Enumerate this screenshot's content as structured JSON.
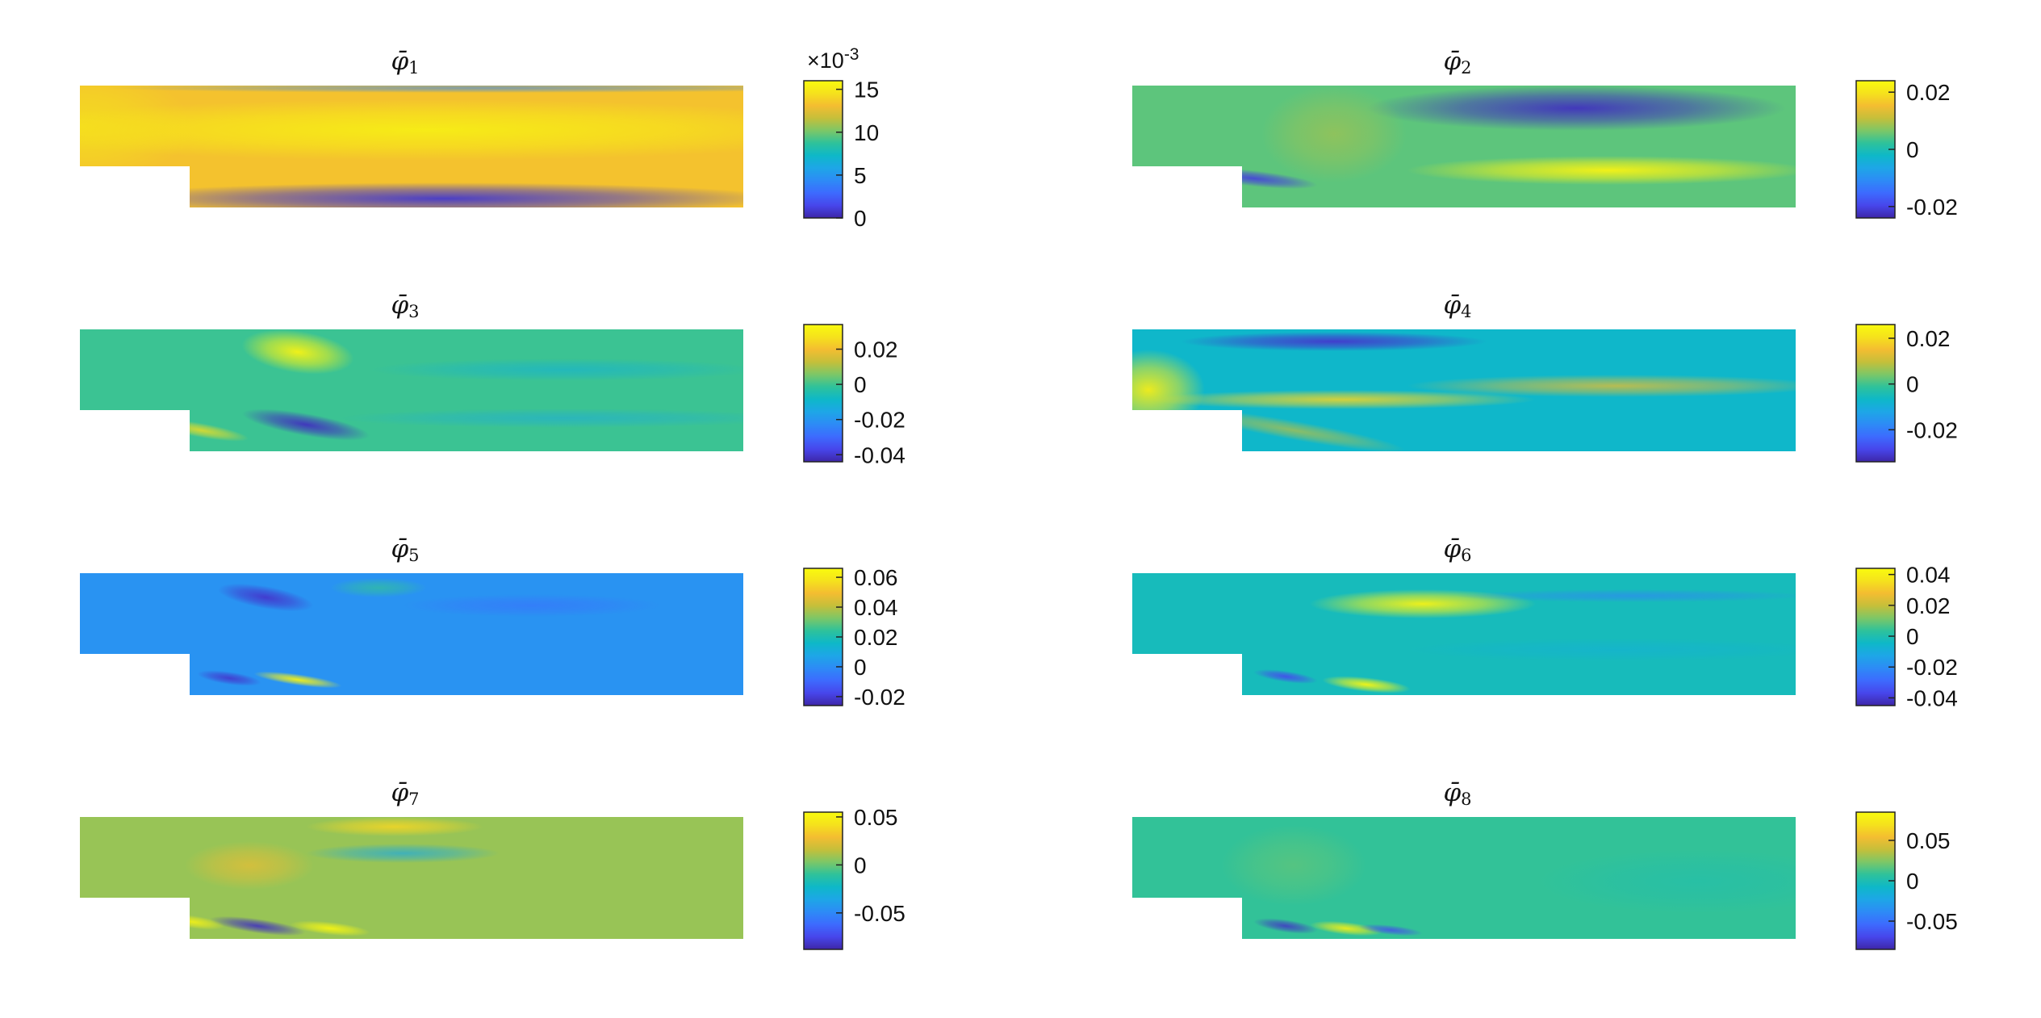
{
  "chart_data": [
    {
      "type": "heatmap",
      "title": "φ̄",
      "subscript": "1",
      "colorbar": {
        "ticks": [
          "15",
          "10",
          "5",
          "0"
        ],
        "exponent_label": "×10",
        "exponent": "-3",
        "range": [
          0,
          0.016
        ]
      }
    },
    {
      "type": "heatmap",
      "title": "φ̄",
      "subscript": "2",
      "colorbar": {
        "ticks": [
          "0.02",
          "0",
          "-0.02"
        ],
        "range": [
          -0.024,
          0.024
        ]
      }
    },
    {
      "type": "heatmap",
      "title": "φ̄",
      "subscript": "3",
      "colorbar": {
        "ticks": [
          "0.02",
          "0",
          "-0.02",
          "-0.04"
        ],
        "range": [
          -0.044,
          0.034
        ]
      }
    },
    {
      "type": "heatmap",
      "title": "φ̄",
      "subscript": "4",
      "colorbar": {
        "ticks": [
          "0.02",
          "0",
          "-0.02"
        ],
        "range": [
          -0.034,
          0.026
        ]
      }
    },
    {
      "type": "heatmap",
      "title": "φ̄",
      "subscript": "5",
      "colorbar": {
        "ticks": [
          "0.06",
          "0.04",
          "0.02",
          "0",
          "-0.02"
        ],
        "range": [
          -0.026,
          0.066
        ]
      }
    },
    {
      "type": "heatmap",
      "title": "φ̄",
      "subscript": "6",
      "colorbar": {
        "ticks": [
          "0.04",
          "0.02",
          "0",
          "-0.02",
          "-0.04"
        ],
        "range": [
          -0.045,
          0.044
        ]
      }
    },
    {
      "type": "heatmap",
      "title": "φ̄",
      "subscript": "7",
      "colorbar": {
        "ticks": [
          "0.05",
          "0",
          "-0.05"
        ],
        "range": [
          -0.088,
          0.055
        ]
      }
    },
    {
      "type": "heatmap",
      "title": "φ̄",
      "subscript": "8",
      "colorbar": {
        "ticks": [
          "0.05",
          "0",
          "-0.05"
        ],
        "range": [
          -0.085,
          0.085
        ]
      }
    }
  ],
  "colormap": [
    "#3e26a8",
    "#4746eb",
    "#3d6afe",
    "#2d8bf6",
    "#1ea6e7",
    "#0eb8c8",
    "#2ec29b",
    "#7dc767",
    "#c5bf3a",
    "#f4bd31",
    "#f5e21c",
    "#f9fb0e"
  ]
}
